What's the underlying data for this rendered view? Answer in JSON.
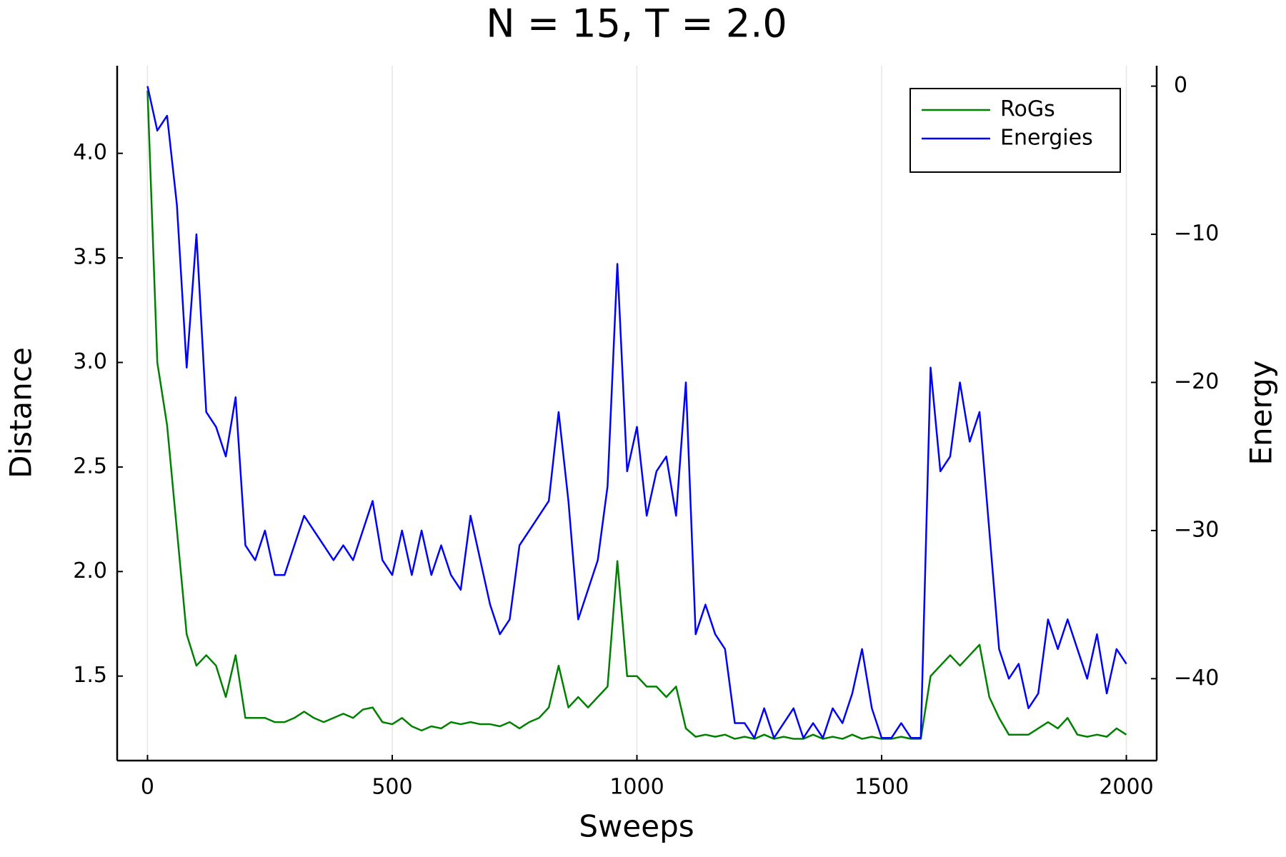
{
  "chart_data": {
    "type": "line",
    "title": "N = 15, T = 2.0",
    "x_label": "Sweeps",
    "y_label": "Distance",
    "y2_label": "Energy",
    "x": [
      0,
      20,
      40,
      60,
      80,
      100,
      120,
      140,
      160,
      180,
      200,
      220,
      240,
      260,
      280,
      300,
      320,
      340,
      360,
      380,
      400,
      420,
      440,
      460,
      480,
      500,
      520,
      540,
      560,
      580,
      600,
      620,
      640,
      660,
      680,
      700,
      720,
      740,
      760,
      780,
      800,
      820,
      840,
      860,
      880,
      900,
      920,
      940,
      960,
      980,
      1000,
      1020,
      1040,
      1060,
      1080,
      1100,
      1120,
      1140,
      1160,
      1180,
      1200,
      1220,
      1240,
      1260,
      1280,
      1300,
      1320,
      1340,
      1360,
      1380,
      1400,
      1420,
      1440,
      1460,
      1480,
      1500,
      1520,
      1540,
      1560,
      1580,
      1600,
      1620,
      1640,
      1660,
      1680,
      1700,
      1720,
      1740,
      1760,
      1780,
      1800,
      1820,
      1840,
      1860,
      1880,
      1900,
      1920,
      1940,
      1960,
      1980,
      2000
    ],
    "series": [
      {
        "name": "RoGs",
        "color": "#008000",
        "axis": "y",
        "values": [
          4.3,
          3.0,
          2.7,
          2.2,
          1.7,
          1.55,
          1.6,
          1.55,
          1.4,
          1.6,
          1.3,
          1.3,
          1.3,
          1.28,
          1.28,
          1.3,
          1.33,
          1.3,
          1.28,
          1.3,
          1.32,
          1.3,
          1.34,
          1.35,
          1.28,
          1.27,
          1.3,
          1.26,
          1.24,
          1.26,
          1.25,
          1.28,
          1.27,
          1.28,
          1.27,
          1.27,
          1.26,
          1.28,
          1.25,
          1.28,
          1.3,
          1.35,
          1.55,
          1.35,
          1.4,
          1.35,
          1.4,
          1.45,
          2.05,
          1.5,
          1.5,
          1.45,
          1.45,
          1.4,
          1.45,
          1.25,
          1.21,
          1.22,
          1.21,
          1.22,
          1.2,
          1.21,
          1.2,
          1.22,
          1.2,
          1.21,
          1.2,
          1.2,
          1.22,
          1.2,
          1.21,
          1.2,
          1.22,
          1.2,
          1.21,
          1.2,
          1.2,
          1.21,
          1.2,
          1.2,
          1.5,
          1.55,
          1.6,
          1.55,
          1.6,
          1.65,
          1.4,
          1.3,
          1.22,
          1.22,
          1.22,
          1.25,
          1.28,
          1.25,
          1.3,
          1.22,
          1.21,
          1.22,
          1.21,
          1.25,
          1.22
        ]
      },
      {
        "name": "Energies",
        "color": "#0000ff",
        "axis": "y2",
        "values": [
          0,
          -3,
          -2,
          -8,
          -19,
          -10,
          -22,
          -23,
          -25,
          -21,
          -31,
          -32,
          -30,
          -33,
          -33,
          -31,
          -29,
          -30,
          -31,
          -32,
          -31,
          -32,
          -30,
          -28,
          -32,
          -33,
          -30,
          -33,
          -30,
          -33,
          -31,
          -33,
          -34,
          -29,
          -32,
          -35,
          -37,
          -36,
          -31,
          -30,
          -29,
          -28,
          -22,
          -28,
          -36,
          -34,
          -32,
          -27,
          -12,
          -26,
          -23,
          -29,
          -26,
          -25,
          -29,
          -20,
          -37,
          -35,
          -37,
          -38,
          -43,
          -43,
          -44,
          -42,
          -44,
          -43,
          -42,
          -44,
          -43,
          -44,
          -42,
          -43,
          -41,
          -38,
          -42,
          -44,
          -44,
          -43,
          -44,
          -44,
          -19,
          -26,
          -25,
          -20,
          -24,
          -22,
          -30,
          -38,
          -40,
          -39,
          -42,
          -41,
          -36,
          -38,
          -36,
          -38,
          -40,
          -37,
          -41,
          -38,
          -39
        ]
      }
    ],
    "xlim": [
      -62,
      2062
    ],
    "xticks": [
      0,
      500,
      1000,
      1500,
      2000
    ],
    "ylim": [
      1.096,
      4.419
    ],
    "yticks": [
      1.5,
      {
        "value": 2.0,
        "label": "2.0"
      },
      2.5,
      {
        "value": 3.0,
        "label": "3.0"
      },
      3.5,
      {
        "value": 4.0,
        "label": "4.0"
      }
    ],
    "y2lim": [
      -45.53,
      1.38
    ],
    "y2ticks": [
      {
        "value": -40,
        "label": "−40"
      },
      {
        "value": -30,
        "label": "−30"
      },
      {
        "value": -20,
        "label": "−20"
      },
      {
        "value": -10,
        "label": "−10"
      },
      0
    ],
    "grid": "x",
    "legend": "top-right"
  }
}
